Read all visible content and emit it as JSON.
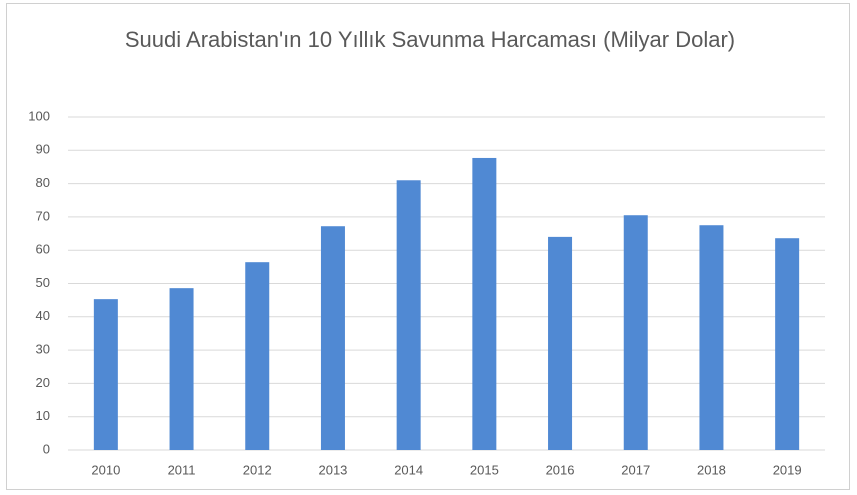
{
  "chart_data": {
    "type": "bar",
    "title": "Suudi Arabistan'ın 10 Yıllık Savunma Harcaması (Milyar Dolar)",
    "categories": [
      "2010",
      "2011",
      "2012",
      "2013",
      "2014",
      "2015",
      "2016",
      "2017",
      "2018",
      "2019"
    ],
    "values": [
      45.3,
      48.6,
      56.4,
      67.2,
      81,
      87.7,
      64,
      70.5,
      67.5,
      63.6
    ],
    "color": "#5089d3",
    "ylim": [
      0,
      100
    ],
    "yticks": [
      0,
      10,
      20,
      30,
      40,
      50,
      60,
      70,
      80,
      90,
      100
    ],
    "grid": true
  }
}
